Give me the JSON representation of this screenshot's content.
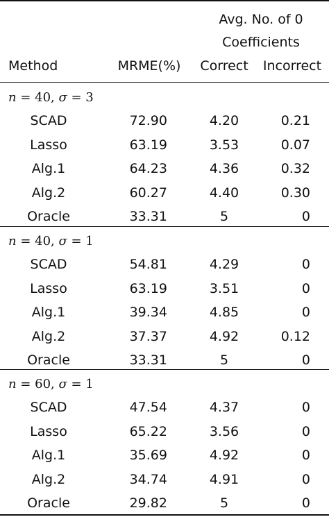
{
  "header": {
    "group_title_line1": "Avg. No. of 0",
    "group_title_line2": "Coefficients",
    "col_method": "Method",
    "col_mrme": "MRME(%)",
    "col_correct": "Correct",
    "col_incorrect": "Incorrect"
  },
  "sections": [
    {
      "n": "40",
      "sigma": "3",
      "rows": [
        {
          "method": "SCAD",
          "mrme": "72.90",
          "correct": "4.20",
          "incorrect": "0.21"
        },
        {
          "method": "Lasso",
          "mrme": "63.19",
          "correct": "3.53",
          "incorrect": "0.07"
        },
        {
          "method": "Alg.1",
          "mrme": "64.23",
          "correct": "4.36",
          "incorrect": "0.32"
        },
        {
          "method": "Alg.2",
          "mrme": "60.27",
          "correct": "4.40",
          "incorrect": "0.30"
        },
        {
          "method": "Oracle",
          "mrme": "33.31",
          "correct": "5",
          "incorrect": "0"
        }
      ]
    },
    {
      "n": "40",
      "sigma": "1",
      "rows": [
        {
          "method": "SCAD",
          "mrme": "54.81",
          "correct": "4.29",
          "incorrect": "0"
        },
        {
          "method": "Lasso",
          "mrme": "63.19",
          "correct": "3.51",
          "incorrect": "0"
        },
        {
          "method": "Alg.1",
          "mrme": "39.34",
          "correct": "4.85",
          "incorrect": "0"
        },
        {
          "method": "Alg.2",
          "mrme": "37.37",
          "correct": "4.92",
          "incorrect": "0.12"
        },
        {
          "method": "Oracle",
          "mrme": "33.31",
          "correct": "5",
          "incorrect": "0"
        }
      ]
    },
    {
      "n": "60",
      "sigma": "1",
      "rows": [
        {
          "method": "SCAD",
          "mrme": "47.54",
          "correct": "4.37",
          "incorrect": "0"
        },
        {
          "method": "Lasso",
          "mrme": "65.22",
          "correct": "3.56",
          "incorrect": "0"
        },
        {
          "method": "Alg.1",
          "mrme": "35.69",
          "correct": "4.92",
          "incorrect": "0"
        },
        {
          "method": "Alg.2",
          "mrme": "34.74",
          "correct": "4.91",
          "incorrect": "0"
        },
        {
          "method": "Oracle",
          "mrme": "29.82",
          "correct": "5",
          "incorrect": "0"
        }
      ]
    }
  ]
}
